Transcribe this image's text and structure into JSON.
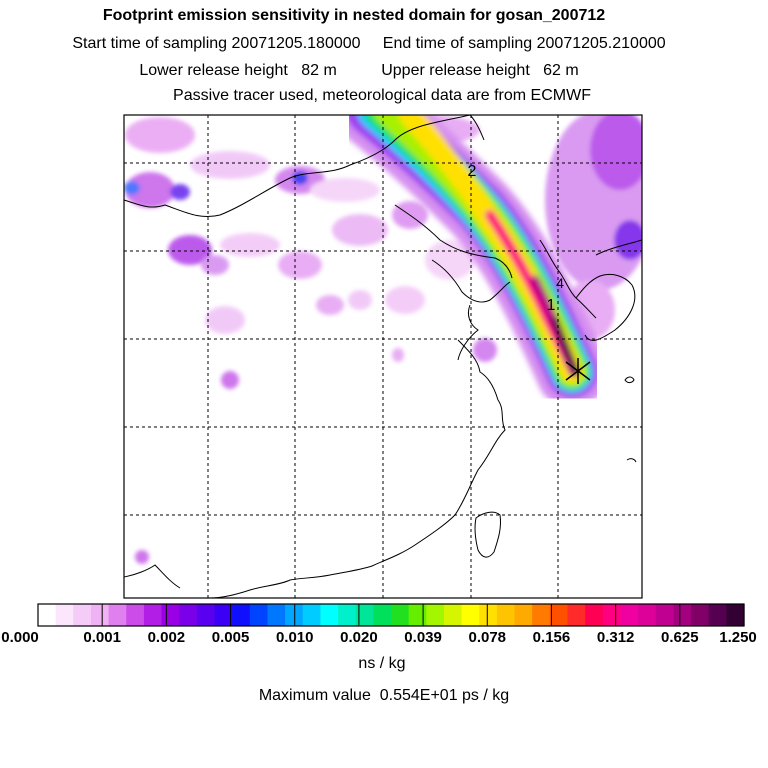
{
  "header": {
    "title": "Footprint emission sensitivity in nested domain for gosan_200712",
    "sampling": "Start time of sampling 20071205.180000     End time of sampling 20071205.210000",
    "release": "Lower release height   82 m          Upper release height   62 m",
    "info": "Passive tracer used, meteorological data are from ECMWF"
  },
  "chart_data": {
    "type": "heatmap",
    "title": "Footprint emission sensitivity in nested domain for gosan_200712",
    "colorbar": {
      "units": "ns / kg",
      "tick_labels": [
        "0.000",
        "0.001",
        "0.002",
        "0.005",
        "0.010",
        "0.020",
        "0.039",
        "0.078",
        "0.156",
        "0.312",
        "0.625",
        "1.250"
      ],
      "tick_values": [
        0.0,
        0.001,
        0.002,
        0.005,
        0.01,
        0.02,
        0.039,
        0.078,
        0.156,
        0.312,
        0.625,
        1.25
      ],
      "colors": [
        "#ffffff",
        "#fbe6fb",
        "#f5ccf7",
        "#efb3f3",
        "#e080ef",
        "#cc4cea",
        "#b31ee6",
        "#9900e6",
        "#7a00ea",
        "#5a00f0",
        "#3a00f5",
        "#1010ff",
        "#0044ff",
        "#0077ff",
        "#00a6ff",
        "#00ccff",
        "#00ffff",
        "#00f0cc",
        "#00e699",
        "#00e05a",
        "#20e020",
        "#66ee00",
        "#a3f500",
        "#d6f500",
        "#ffff00",
        "#ffe000",
        "#ffc400",
        "#ffaa00",
        "#ff7a00",
        "#ff5000",
        "#ff2a2a",
        "#ff0055",
        "#ff0080",
        "#f000a0",
        "#dd0099",
        "#c00090",
        "#a30080",
        "#800068",
        "#550050",
        "#330033"
      ]
    },
    "trajectory_markers": [
      "1",
      "2",
      "4"
    ],
    "receptor": "gosan",
    "max_value": "Maximum value  0.554E+01 ps / kg"
  }
}
